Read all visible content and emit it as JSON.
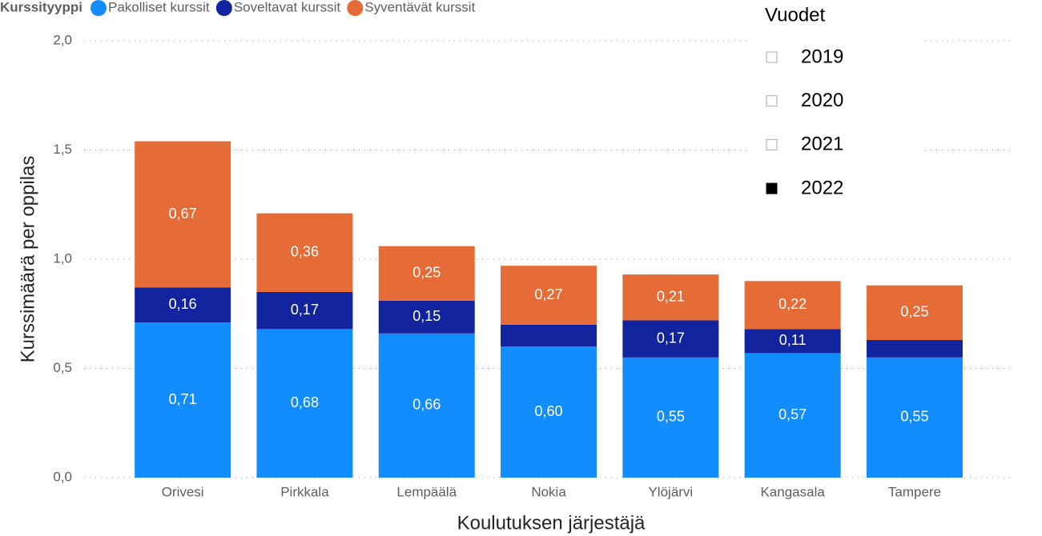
{
  "chart_data": {
    "type": "stacked_bar",
    "legend_title": "Kurssityyppi",
    "x_label": "Koulutuksen järjestäjä",
    "y_label": "Kurssimäärä per oppilas",
    "categories": [
      "Orivesi",
      "Pirkkala",
      "Lempäälä",
      "Nokia",
      "Ylöjärvi",
      "Kangasala",
      "Tampere"
    ],
    "series": [
      {
        "name": "Pakolliset kurssit",
        "color": "#118DFF",
        "values": [
          0.71,
          0.68,
          0.66,
          0.6,
          0.55,
          0.57,
          0.55
        ],
        "value_labels": [
          "0,71",
          "0,68",
          "0,66",
          "0,60",
          "0,55",
          "0,57",
          "0,55"
        ]
      },
      {
        "name": "Soveltavat kurssit",
        "color": "#12239E",
        "values": [
          0.16,
          0.17,
          0.15,
          0.1,
          0.17,
          0.11,
          0.08
        ],
        "value_labels": [
          "0,16",
          "0,17",
          "0,15",
          null,
          "0,17",
          "0,11",
          null
        ]
      },
      {
        "name": "Syventävät kurssit",
        "color": "#E66C37",
        "values": [
          0.67,
          0.36,
          0.25,
          0.27,
          0.21,
          0.22,
          0.25
        ],
        "value_labels": [
          "0,67",
          "0,36",
          "0,25",
          "0,27",
          "0,21",
          "0,22",
          "0,25"
        ]
      }
    ],
    "ylim": [
      0,
      2
    ],
    "yticks": [
      {
        "value": 0,
        "label": "0,0"
      },
      {
        "value": 0.5,
        "label": "0,5"
      },
      {
        "value": 1,
        "label": "1,0"
      },
      {
        "value": 1.5,
        "label": "1,5"
      },
      {
        "value": 2,
        "label": "2,0"
      }
    ],
    "grid": true
  },
  "slicer": {
    "title": "Vuodet",
    "icon": "",
    "items": [
      "2019",
      "2020",
      "2021",
      "2022"
    ],
    "checked": [
      false,
      false,
      false,
      true
    ]
  }
}
